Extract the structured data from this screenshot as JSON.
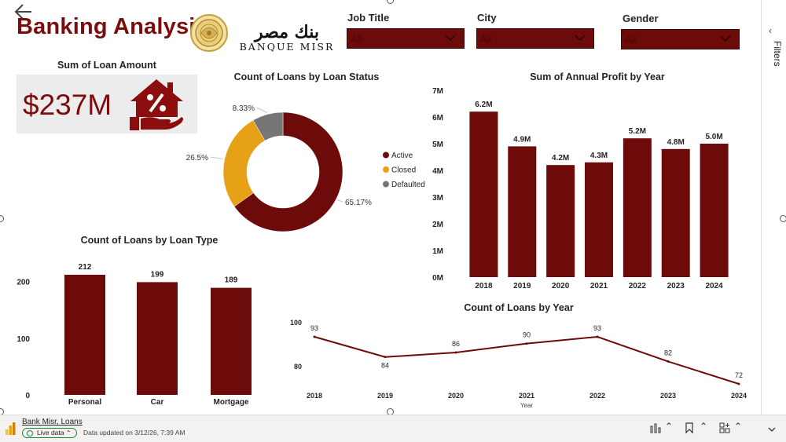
{
  "header": {
    "title": "Banking Analysis",
    "logo_arabic": "بنك مصر",
    "logo_english": "BANQUE MISR"
  },
  "slicers": [
    {
      "label": "Job Title",
      "value": "All"
    },
    {
      "label": "City",
      "value": "All"
    },
    {
      "label": "Gender",
      "value": "All"
    }
  ],
  "card": {
    "title": "Sum of Loan Amount",
    "value": "$237M",
    "icon": "house-percent-icon"
  },
  "filters_pane": {
    "label": "Filters",
    "icon": "chevron-left-icon"
  },
  "charts": {
    "donut": {
      "title": "Count of Loans by Loan Status",
      "chart_data": {
        "type": "pie",
        "categories": [
          "Active",
          "Closed",
          "Defaulted"
        ],
        "values": [
          65.17,
          26.5,
          8.33
        ],
        "data_labels": [
          "65.17%",
          "26.5%",
          "8.33%"
        ],
        "colors": [
          "#6d0a0a",
          "#e6a117",
          "#767676"
        ],
        "legend_position": "right"
      }
    },
    "profit": {
      "title": "Sum of Annual Profit by Year",
      "chart_data": {
        "type": "bar",
        "categories": [
          "2018",
          "2019",
          "2020",
          "2021",
          "2022",
          "2023",
          "2024"
        ],
        "values": [
          6.2,
          4.9,
          4.2,
          4.3,
          5.2,
          4.8,
          5.0
        ],
        "data_labels": [
          "6.2M",
          "4.9M",
          "4.2M",
          "4.3M",
          "5.2M",
          "4.8M",
          "5.0M"
        ],
        "y_ticks": [
          "0M",
          "1M",
          "2M",
          "3M",
          "4M",
          "5M",
          "6M",
          "7M"
        ],
        "ylim": [
          0,
          7
        ],
        "unit": "M",
        "color": "#6d0a0a"
      }
    },
    "loan_type": {
      "title": "Count of Loans by Loan Type",
      "chart_data": {
        "type": "bar",
        "categories": [
          "Personal",
          "Car",
          "Mortgage"
        ],
        "values": [
          212,
          199,
          189
        ],
        "data_labels": [
          "212",
          "199",
          "189"
        ],
        "y_ticks": [
          "0",
          "100",
          "200"
        ],
        "ylim": [
          0,
          212
        ],
        "color": "#6d0a0a"
      }
    },
    "count_year": {
      "title": "Count of Loans by Year",
      "chart_data": {
        "type": "line",
        "x": [
          "2018",
          "2019",
          "2020",
          "2021",
          "2022",
          "2023",
          "2024"
        ],
        "values": [
          93,
          84,
          86,
          90,
          93,
          82,
          72
        ],
        "data_labels": [
          "93",
          "84",
          "86",
          "90",
          "93",
          "82",
          "72"
        ],
        "y_ticks": [
          "80",
          "100"
        ],
        "ylim": [
          70,
          100
        ],
        "xlabel": "Year",
        "color": "#6d0a0a"
      }
    }
  },
  "footer": {
    "report_name": "Bank Misr, Loans",
    "live_badge": "Live data",
    "updated": "Data updated on 3/12/26, 7:39 AM",
    "buttons": [
      "bar-chart-icon",
      "bookmark-icon",
      "apps-icon",
      "chevron-down-icon"
    ]
  }
}
